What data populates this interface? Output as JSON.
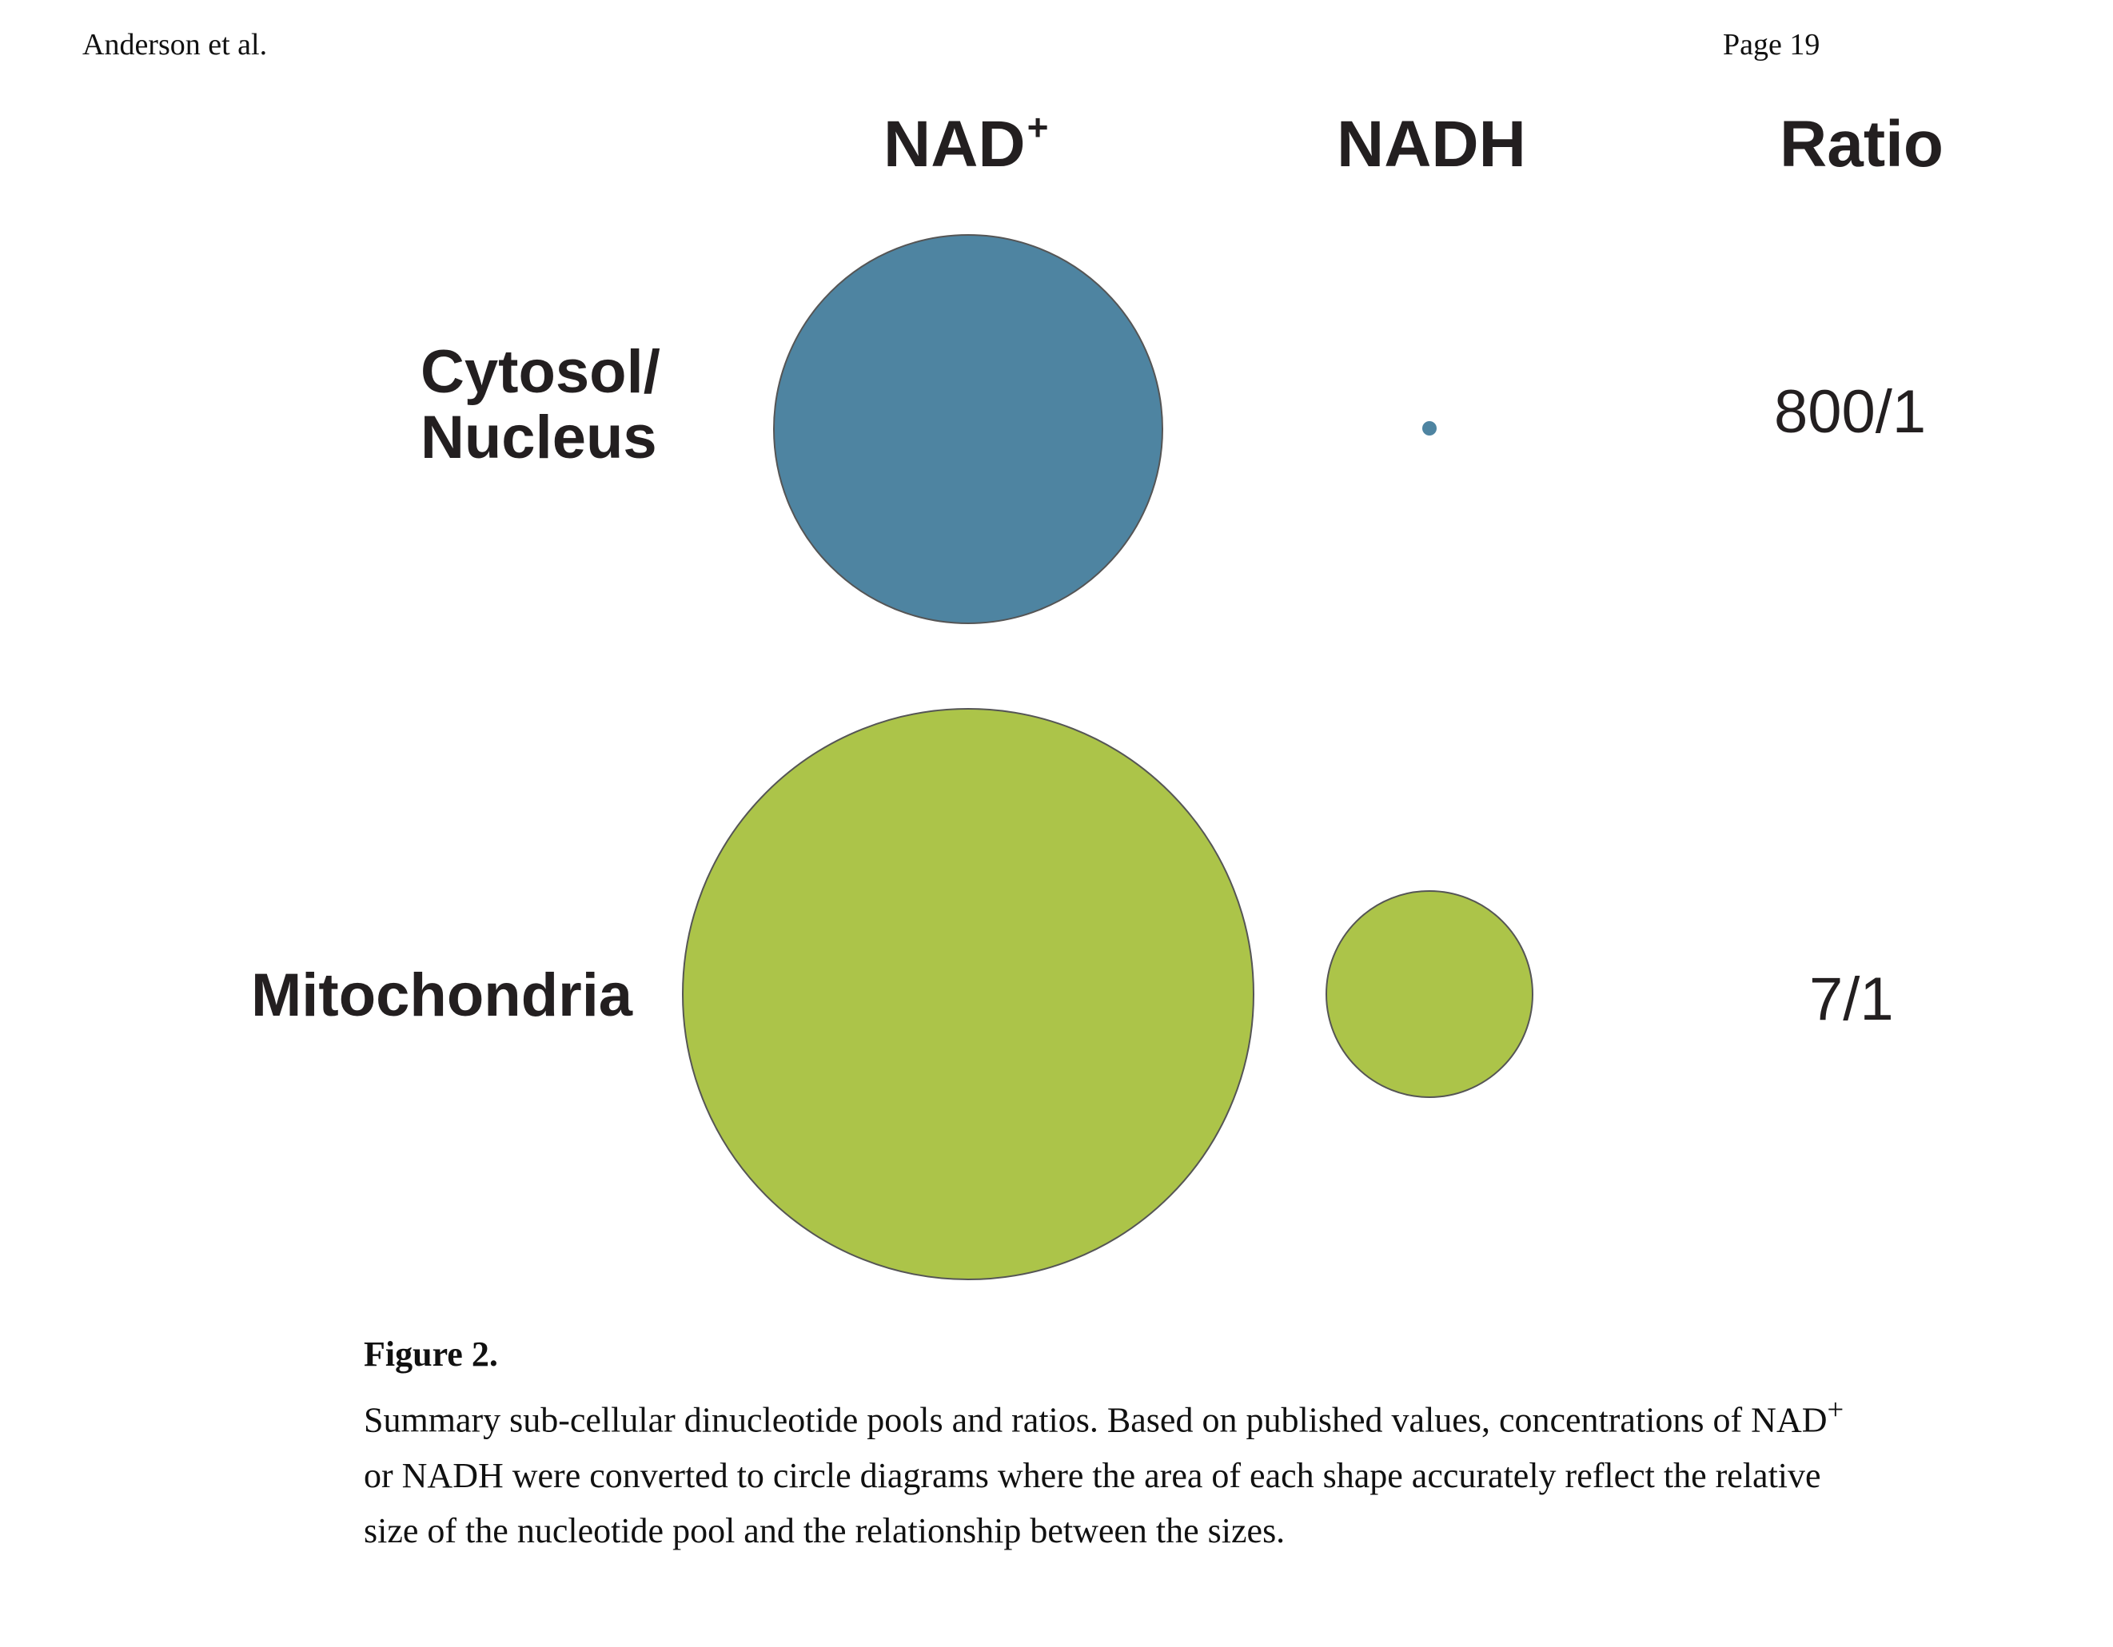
{
  "running_head": {
    "author": "Anderson et al.",
    "page": "Page 19"
  },
  "figure": {
    "columns": {
      "nad_base": "NAD",
      "nad_sup": "+",
      "nadh": "NADH",
      "ratio": "Ratio"
    },
    "rows": [
      {
        "label_line1": "Cytosol/",
        "label_line2": "Nucleus",
        "ratio": "800/1",
        "color": "#4e84a1"
      },
      {
        "label": "Mitochondria",
        "ratio": "7/1",
        "color": "#acc449"
      }
    ],
    "stroke_color": "#555555"
  },
  "caption": {
    "label": "Figure 2.",
    "text_part1": "Summary sub-cellular dinucleotide pools and ratios. Based on published values, concentrations of NAD",
    "sup": "+",
    "text_part2": " or NADH were converted to circle diagrams where the area of each shape accurately reflect the relative size of the nucleotide pool and the relationship between the sizes."
  }
}
